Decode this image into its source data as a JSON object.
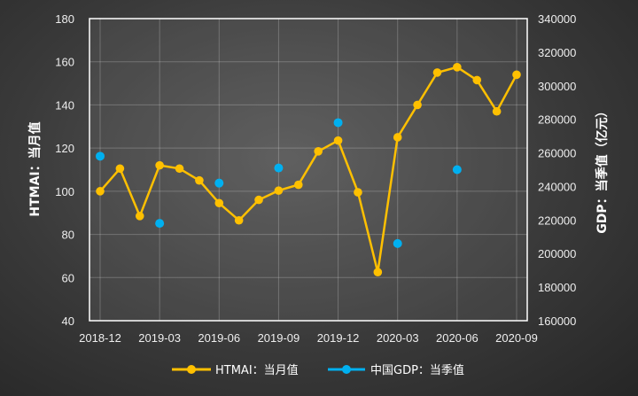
{
  "chart_data": {
    "type": "line",
    "x_ticks": [
      "2018-12",
      "2019-03",
      "2019-06",
      "2019-09",
      "2019-12",
      "2020-03",
      "2020-06",
      "2020-09"
    ],
    "y_left": {
      "label": "HTMAI：当月值",
      "ylim": [
        40,
        180
      ],
      "ticks": [
        40,
        60,
        80,
        100,
        120,
        140,
        160,
        180
      ]
    },
    "y_right": {
      "label": "GDP：当季值（亿元）",
      "ylim": [
        160000,
        340000
      ],
      "ticks": [
        160000,
        180000,
        200000,
        220000,
        240000,
        260000,
        280000,
        300000,
        320000,
        340000
      ]
    },
    "grid": true,
    "legend_position": "bottom",
    "series": [
      {
        "name": "HTMAI：当月值",
        "type": "line",
        "axis": "left",
        "color": "#ffc000",
        "x": [
          "2018-12",
          "2019-01",
          "2019-02",
          "2019-03",
          "2019-04",
          "2019-05",
          "2019-06",
          "2019-07",
          "2019-08",
          "2019-09",
          "2019-10",
          "2019-11",
          "2019-12",
          "2020-01",
          "2020-02",
          "2020-03",
          "2020-04",
          "2020-05",
          "2020-06",
          "2020-07",
          "2020-08",
          "2020-09"
        ],
        "values": [
          100,
          110.5,
          88.5,
          112,
          110.5,
          105,
          94.5,
          86.5,
          96,
          100.3,
          103,
          118.5,
          123.5,
          99.5,
          62.5,
          125,
          140,
          155,
          157.5,
          151.5,
          137,
          154
        ]
      },
      {
        "name": "中国GDP：当季值",
        "type": "scatter",
        "axis": "right",
        "color": "#00b0f0",
        "x": [
          "2018-12",
          "2019-03",
          "2019-06",
          "2019-09",
          "2019-12",
          "2020-03",
          "2020-06"
        ],
        "values": [
          258000,
          218000,
          242000,
          251000,
          278000,
          206000,
          250000
        ]
      }
    ]
  }
}
